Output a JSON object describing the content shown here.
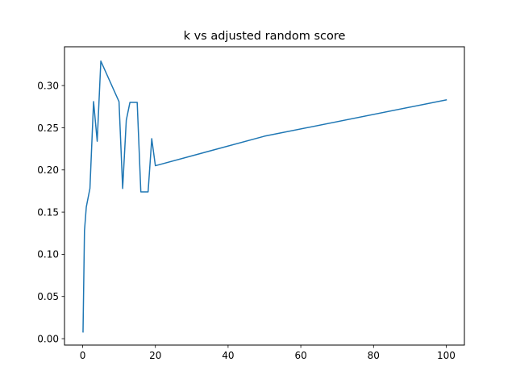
{
  "chart_data": {
    "type": "line",
    "title": "k vs adjusted random score",
    "xlabel": "",
    "ylabel": "",
    "xlim": [
      -4.995,
      104.995
    ],
    "ylim": [
      -0.0076,
      0.346
    ],
    "x_ticks": [
      0,
      20,
      40,
      60,
      80,
      100
    ],
    "y_ticks": [
      0.0,
      0.05,
      0.1,
      0.15,
      0.2,
      0.25,
      0.3
    ],
    "x_tick_labels": [
      "0",
      "20",
      "40",
      "60",
      "80",
      "100"
    ],
    "y_tick_labels": [
      "0.00",
      "0.05",
      "0.10",
      "0.15",
      "0.20",
      "0.25",
      "0.30"
    ],
    "grid": false,
    "series": [
      {
        "color": "#1f77b4",
        "x": [
          0.1,
          0.5,
          1,
          2,
          3,
          4,
          5,
          10,
          11,
          12,
          13,
          14,
          15,
          16,
          17,
          18,
          19,
          20,
          50,
          100
        ],
        "y": [
          0.008,
          0.128,
          0.156,
          0.178,
          0.281,
          0.234,
          0.329,
          0.281,
          0.178,
          0.259,
          0.28,
          0.28,
          0.28,
          0.174,
          0.174,
          0.174,
          0.237,
          0.205,
          0.24,
          0.283
        ]
      }
    ]
  }
}
